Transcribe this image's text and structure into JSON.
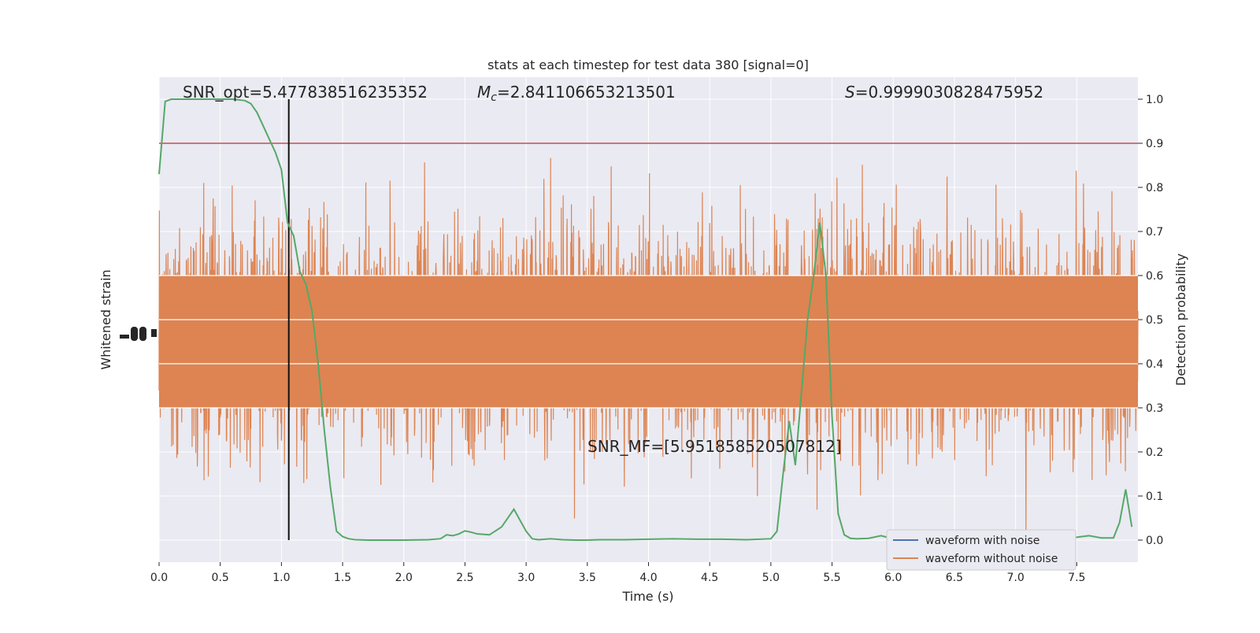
{
  "chart_data": {
    "type": "line",
    "title": "stats at each timestep for test data 380 [signal=0]",
    "xlabel": "Time (s)",
    "ylabel_left": "Whitened strain",
    "ylabel_right": "Detection probability",
    "xlim": [
      0,
      8
    ],
    "ylim_right": [
      -0.05,
      1.05
    ],
    "x_ticks": [
      "0.0",
      "0.5",
      "1.0",
      "1.5",
      "2.0",
      "2.5",
      "3.0",
      "3.5",
      "4.0",
      "4.5",
      "5.0",
      "5.5",
      "6.0",
      "6.5",
      "7.0",
      "7.5"
    ],
    "x_tick_values": [
      0,
      0.5,
      1,
      1.5,
      2,
      2.5,
      3,
      3.5,
      4,
      4.5,
      5,
      5.5,
      6,
      6.5,
      7,
      7.5
    ],
    "y_ticks_right": [
      "0.0",
      "0.1",
      "0.2",
      "0.3",
      "0.4",
      "0.5",
      "0.6",
      "0.7",
      "0.8",
      "0.9",
      "1.0"
    ],
    "y_tick_values_right": [
      0,
      0.1,
      0.2,
      0.3,
      0.4,
      0.5,
      0.6,
      0.7,
      0.8,
      0.9,
      1.0
    ],
    "grid": true,
    "legend_position": "lower-right",
    "series": [
      {
        "name": "waveform with noise",
        "color": "#4c72b0"
      },
      {
        "name": "waveform without noise",
        "color": "#dd8452"
      },
      {
        "color": "#55a868",
        "x": [
          0,
          0.05,
          0.1,
          0.2,
          0.3,
          0.4,
          0.5,
          0.6,
          0.7,
          0.75,
          0.8,
          0.85,
          0.9,
          0.95,
          1.0,
          1.05,
          1.1,
          1.15,
          1.2,
          1.25,
          1.3,
          1.35,
          1.4,
          1.45,
          1.5,
          1.55,
          1.6,
          1.7,
          1.8,
          2.0,
          2.2,
          2.3,
          2.35,
          2.4,
          2.45,
          2.5,
          2.55,
          2.6,
          2.7,
          2.8,
          2.9,
          3.0,
          3.05,
          3.1,
          3.2,
          3.3,
          3.4,
          3.5,
          3.6,
          3.8,
          4.0,
          4.2,
          4.4,
          4.6,
          4.8,
          5.0,
          5.05,
          5.1,
          5.15,
          5.2,
          5.3,
          5.35,
          5.4,
          5.45,
          5.5,
          5.55,
          5.6,
          5.65,
          5.7,
          5.8,
          5.9,
          6.0,
          6.2,
          6.4,
          6.6,
          6.8,
          7.0,
          7.2,
          7.4,
          7.6,
          7.7,
          7.8,
          7.85,
          7.9,
          7.95
        ],
        "y": [
          0.83,
          0.995,
          1.0,
          1.0,
          1.0,
          1.0,
          1.0,
          1.0,
          0.997,
          0.99,
          0.97,
          0.94,
          0.91,
          0.88,
          0.84,
          0.72,
          0.69,
          0.61,
          0.58,
          0.52,
          0.4,
          0.25,
          0.12,
          0.02,
          0.008,
          0.003,
          0.001,
          0.0,
          0.0,
          0.0,
          0.001,
          0.003,
          0.012,
          0.01,
          0.014,
          0.021,
          0.018,
          0.014,
          0.012,
          0.03,
          0.07,
          0.02,
          0.003,
          0.001,
          0.003,
          0.001,
          0.0,
          0.0,
          0.001,
          0.001,
          0.002,
          0.003,
          0.002,
          0.002,
          0.001,
          0.003,
          0.02,
          0.15,
          0.27,
          0.17,
          0.5,
          0.6,
          0.72,
          0.6,
          0.28,
          0.06,
          0.012,
          0.004,
          0.003,
          0.004,
          0.01,
          0.003,
          0.004,
          0.003,
          0.003,
          0.003,
          0.005,
          0.005,
          0.003,
          0.01,
          0.005,
          0.005,
          0.04,
          0.115,
          0.03
        ]
      }
    ],
    "threshold": {
      "y": 0.9,
      "color": "#c44e52"
    },
    "vline_x": 1.06,
    "annotations": {
      "snr_opt": "SNR_opt=5.477838516235352",
      "mc_symbol": "M",
      "mc_sub": "c",
      "mc_value": "=2.841106653213501",
      "s_symbol": "S",
      "s_value": "=0.9999030828475952",
      "snr_mf": "SNR_MF=[5.951858520507812]"
    }
  }
}
